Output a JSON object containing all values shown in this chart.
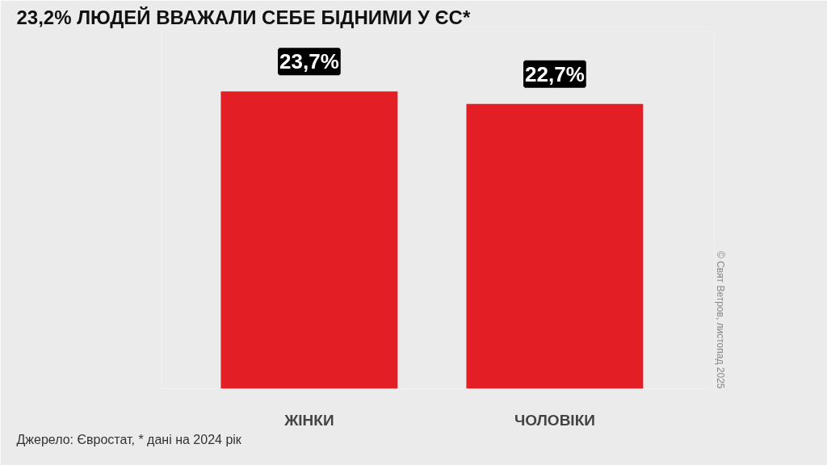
{
  "chart_data": {
    "type": "bar",
    "title": "23,2% ЛЮДЕЙ ВВАЖАЛИ СЕБЕ БІДНИМИ У ЄС*",
    "categories": [
      "ЖІНКИ",
      "ЧОЛОВІКИ"
    ],
    "values": [
      23.7,
      22.7
    ],
    "value_labels": [
      "23,7%",
      "22,7%"
    ],
    "color": "#e31e24",
    "annotations": [
      "Джерело: Євростат, * дані на 2024 рік",
      "© Свят Ветров, листопад 2025"
    ],
    "grid": false
  }
}
